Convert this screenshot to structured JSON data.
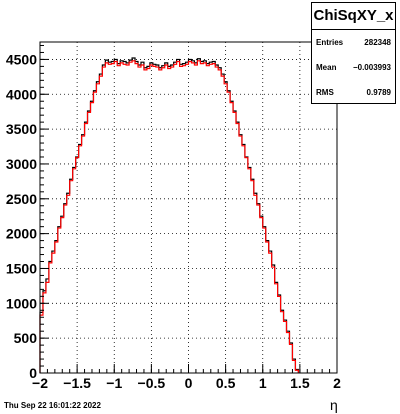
{
  "stats": {
    "name": "ChiSqXY_x",
    "entries_label": "Entries",
    "entries_value": "282348",
    "mean_label": "Mean",
    "mean_value": "−0.003993",
    "rms_label": "RMS",
    "rms_value": "0.9789"
  },
  "footer": {
    "date": "Thu Sep 22 16:01:22 2022"
  },
  "chart_data": {
    "type": "histogram",
    "title": "",
    "xlabel": "η",
    "ylabel": "",
    "xlim": [
      -2,
      2
    ],
    "ylim": [
      0,
      4750
    ],
    "bin_width": 0.04,
    "grid": true,
    "x_ticks": [
      "−2",
      "−1.5",
      "−1",
      "−0.5",
      "0",
      "0.5",
      "1",
      "1.5",
      "2"
    ],
    "x_tick_values": [
      -2,
      -1.5,
      -1,
      -0.5,
      0,
      0.5,
      1,
      1.5,
      2
    ],
    "y_ticks": [
      "0",
      "500",
      "1000",
      "1500",
      "2000",
      "2500",
      "3000",
      "3500",
      "4000",
      "4500"
    ],
    "y_tick_values": [
      0,
      500,
      1000,
      1500,
      2000,
      2500,
      3000,
      3500,
      4000,
      4500
    ],
    "series": [
      {
        "color": "#000000",
        "values": [
          870,
          1180,
          1350,
          1600,
          1750,
          1900,
          2100,
          2250,
          2430,
          2580,
          2780,
          2950,
          3100,
          3280,
          3420,
          3600,
          3760,
          3900,
          4050,
          4180,
          4290,
          4420,
          4490,
          4460,
          4470,
          4500,
          4440,
          4480,
          4470,
          4450,
          4490,
          4520,
          4470,
          4420,
          4460,
          4380,
          4400,
          4450,
          4430,
          4420,
          4380,
          4410,
          4450,
          4400,
          4420,
          4460,
          4500,
          4430,
          4440,
          4460,
          4500,
          4480,
          4450,
          4510,
          4470,
          4480,
          4440,
          4460,
          4470,
          4420,
          4380,
          4290,
          4180,
          4050,
          3900,
          3760,
          3600,
          3420,
          3280,
          3100,
          2950,
          2780,
          2580,
          2430,
          2250,
          2100,
          1900,
          1750,
          1550,
          1300,
          1120,
          900,
          760,
          600,
          430,
          200,
          50
        ]
      },
      {
        "color": "#ff0000",
        "values": [
          830,
          1150,
          1300,
          1580,
          1720,
          1880,
          2080,
          2230,
          2410,
          2550,
          2760,
          2930,
          3090,
          3260,
          3400,
          3580,
          3740,
          3880,
          4030,
          4150,
          4260,
          4390,
          4450,
          4430,
          4440,
          4470,
          4410,
          4450,
          4430,
          4420,
          4460,
          4480,
          4440,
          4390,
          4420,
          4350,
          4370,
          4420,
          4400,
          4390,
          4350,
          4380,
          4420,
          4370,
          4390,
          4430,
          4470,
          4400,
          4410,
          4430,
          4470,
          4450,
          4420,
          4480,
          4440,
          4450,
          4410,
          4430,
          4440,
          4390,
          4350,
          4260,
          4150,
          4030,
          3880,
          3740,
          3580,
          3400,
          3260,
          3090,
          2930,
          2760,
          2550,
          2410,
          2230,
          2080,
          1880,
          1720,
          1520,
          1280,
          1100,
          880,
          740,
          580,
          410,
          180,
          40
        ]
      }
    ]
  }
}
